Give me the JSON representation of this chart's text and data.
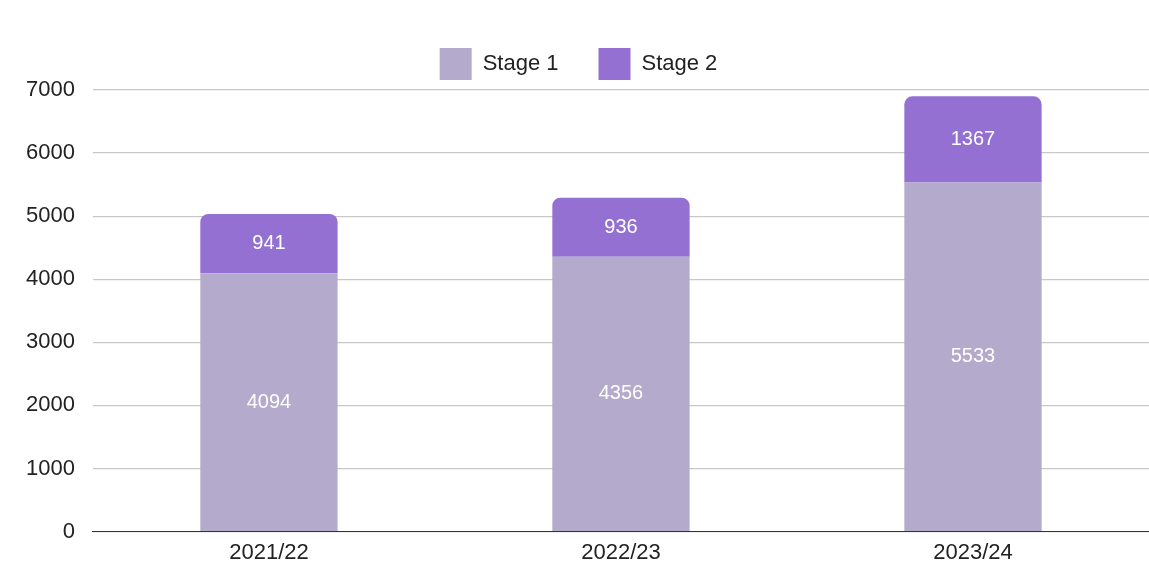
{
  "chart_data": {
    "type": "bar",
    "stacked": true,
    "categories": [
      "2021/22",
      "2022/23",
      "2023/24"
    ],
    "series": [
      {
        "name": "Stage 1",
        "color": "#b4aacb",
        "values": [
          4094,
          4356,
          5533
        ]
      },
      {
        "name": "Stage 2",
        "color": "#9370d2",
        "values": [
          941,
          936,
          1367
        ]
      }
    ],
    "ylim": [
      0,
      7000
    ],
    "yticks": [
      0,
      1000,
      2000,
      3000,
      4000,
      5000,
      6000,
      7000
    ],
    "grid": "y",
    "legend": "top",
    "data_labels": true
  }
}
